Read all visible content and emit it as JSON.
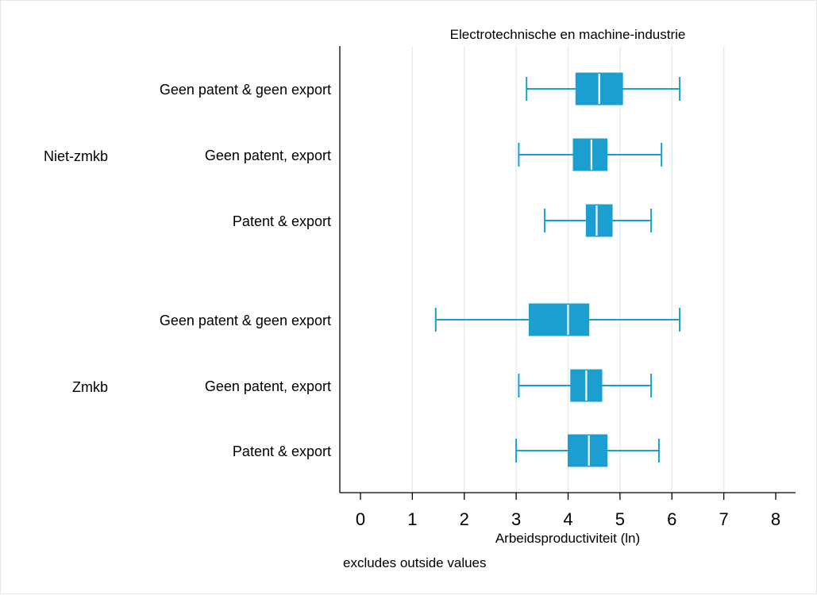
{
  "chart_data": {
    "type": "boxplot",
    "orientation": "horizontal",
    "title": "Electrotechnische en machine-industrie",
    "xlabel": "Arbeidsproductiviteit (ln)",
    "note": "excludes outside values",
    "xlim": [
      -0.4,
      8.4
    ],
    "x_ticks": [
      "0",
      "1",
      "2",
      "3",
      "4",
      "5",
      "6",
      "7",
      "8"
    ],
    "x_tick_values": [
      0,
      1,
      2,
      3,
      4,
      5,
      6,
      7,
      8
    ],
    "grid": "vertical",
    "box_color": "#1a9fd0",
    "median_color": "#ffffff",
    "grid_color": "#e4eef0",
    "groups": [
      {
        "name": "Niet-zmkb",
        "boxes": [
          {
            "label": "Geen patent & geen export",
            "whisker_low": 3.2,
            "q1": 4.15,
            "median": 4.6,
            "q3": 5.05,
            "whisker_high": 6.15
          },
          {
            "label": "Geen patent, export",
            "whisker_low": 3.05,
            "q1": 4.1,
            "median": 4.45,
            "q3": 4.75,
            "whisker_high": 5.8
          },
          {
            "label": "Patent & export",
            "whisker_low": 3.55,
            "q1": 4.35,
            "median": 4.55,
            "q3": 4.85,
            "whisker_high": 5.6
          }
        ]
      },
      {
        "name": "Zmkb",
        "boxes": [
          {
            "label": "Geen patent & geen export",
            "whisker_low": 1.45,
            "q1": 3.25,
            "median": 4.0,
            "q3": 4.4,
            "whisker_high": 6.15
          },
          {
            "label": "Geen patent, export",
            "whisker_low": 3.05,
            "q1": 4.05,
            "median": 4.35,
            "q3": 4.65,
            "whisker_high": 5.6
          },
          {
            "label": "Patent & export",
            "whisker_low": 3.0,
            "q1": 4.0,
            "median": 4.4,
            "q3": 4.75,
            "whisker_high": 5.75
          }
        ]
      }
    ]
  }
}
